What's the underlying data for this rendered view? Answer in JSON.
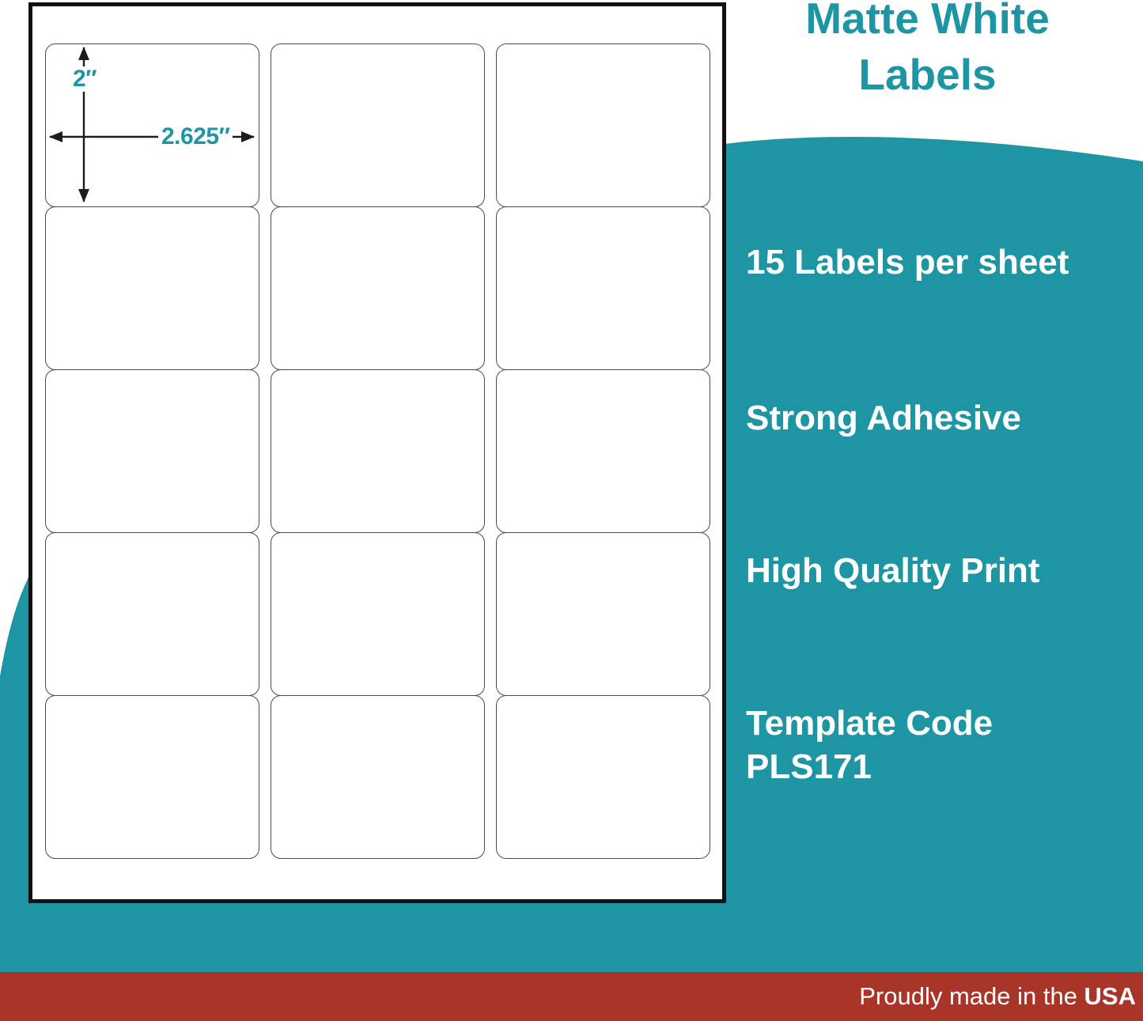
{
  "colors": {
    "teal": "#1E95A3",
    "red": "#A93428",
    "sheet_border": "#111111",
    "label_border": "#4B4B4B",
    "arrow": "#1C1C1C",
    "text_white": "#FFFFFF"
  },
  "title": {
    "lines": [
      "Matte White",
      "Labels"
    ]
  },
  "sheet": {
    "grid": {
      "columns": 3,
      "rows": 5,
      "labels_total": 15
    },
    "dimensions": {
      "label_height": "2″",
      "label_width": "2.625″"
    }
  },
  "features": [
    {
      "lines": [
        "15 Labels per sheet",
        ""
      ]
    },
    {
      "lines": [
        "Strong Adhesive",
        ""
      ]
    },
    {
      "lines": [
        "High Quality Print",
        ""
      ]
    },
    {
      "lines": [
        "Template Code",
        "PLS171"
      ]
    }
  ],
  "footer": {
    "prefix": "Proudly made in the ",
    "bold": "USA"
  }
}
